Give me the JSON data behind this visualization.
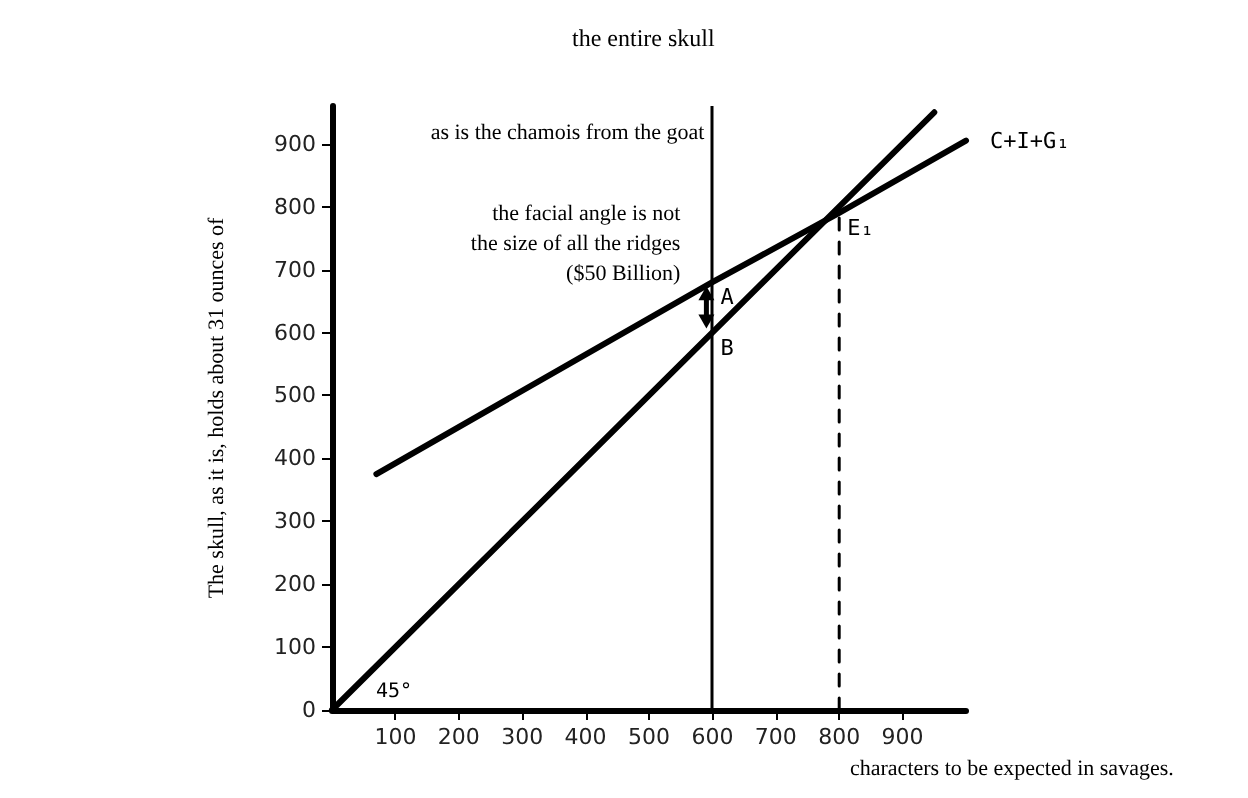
{
  "chart_data": {
    "type": "line",
    "title": "the entire skull",
    "xlabel": "characters to be expected in savages.",
    "ylabel": "The skull, as it is, holds about 31 ounces of",
    "xlim": [
      0,
      1000
    ],
    "ylim": [
      0,
      960
    ],
    "xticks": [
      100,
      200,
      300,
      400,
      500,
      600,
      700,
      800,
      900
    ],
    "yticks": [
      0,
      100,
      200,
      300,
      400,
      500,
      600,
      700,
      800,
      900
    ],
    "series": [
      {
        "x": [
          0,
          950
        ],
        "values": [
          0,
          950
        ],
        "color": "#000000"
      },
      {
        "name": "C+I+G₁",
        "x": [
          70,
          600,
          800,
          1000
        ],
        "values": [
          375,
          680,
          790,
          905
        ],
        "color": "#000000"
      },
      {
        "x": [
          800,
          800
        ],
        "values": [
          0,
          790
        ],
        "color": "#000000",
        "line_style": "dashed"
      }
    ],
    "ref_lines": [
      {
        "axis": "x",
        "value": 600,
        "color": "#000000"
      }
    ],
    "annotations": [
      "as is the chamois from the goat",
      {
        "text": "the facial angle is not\nthe size of all the ridges\n($50 Billion)",
        "x": 600,
        "y": 740
      },
      {
        "text": "A",
        "x": 600,
        "y": 680
      },
      {
        "text": "B",
        "x": 600,
        "y": 600
      },
      {
        "text": "E₁",
        "x": 800,
        "y": 790
      },
      {
        "text": "45°",
        "x": 0,
        "y": 0
      }
    ],
    "legend": false,
    "grid": false,
    "marker": "none",
    "line_style": "solid"
  }
}
